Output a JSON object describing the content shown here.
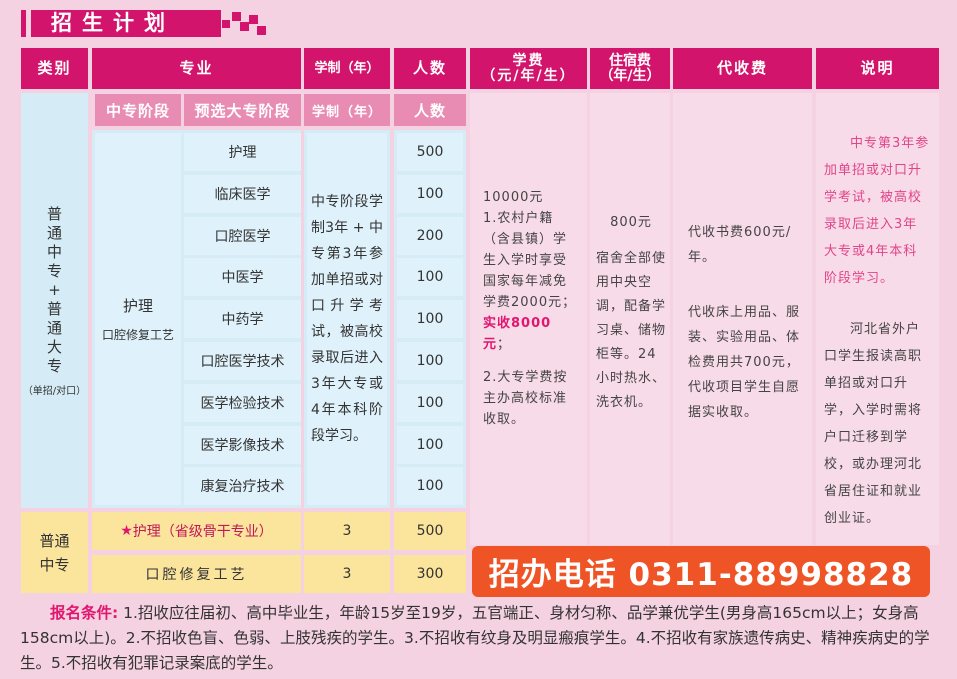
{
  "title": "招生计划",
  "colors": {
    "header": "#d3146c",
    "subheader": "#e98cb3",
    "blue": "#d5ebf6",
    "yellow": "#fbe49b",
    "phone_bg": "#ef5426",
    "highlight": "#e0166f"
  },
  "header": [
    "类别",
    "专业",
    "学制（年）",
    "人数",
    "学费\n（元/年/生）",
    "住宿费\n（年/生）",
    "代收费",
    "说明"
  ],
  "subheader": [
    "中专阶段",
    "预选大专阶段",
    "学制（年）",
    "人数"
  ],
  "category1": {
    "lines": [
      "普",
      "通",
      "中",
      "专",
      "+",
      "普",
      "通",
      "大",
      "专"
    ],
    "note": "（单招/对口）"
  },
  "stage1": {
    "major": "护理",
    "sub": "口腔修复工艺"
  },
  "majors": [
    {
      "name": "护理",
      "count": "500"
    },
    {
      "name": "临床医学",
      "count": "100"
    },
    {
      "name": "口腔医学",
      "count": "200"
    },
    {
      "name": "中医学",
      "count": "100"
    },
    {
      "name": "中药学",
      "count": "100"
    },
    {
      "name": "口腔医学技术",
      "count": "100"
    },
    {
      "name": "医学检验技术",
      "count": "100"
    },
    {
      "name": "医学影像技术",
      "count": "100"
    },
    {
      "name": "康复治疗技术",
      "count": "100"
    }
  ],
  "duration_note": "中专阶段学制3年 + 中专第3年参加单招或对口升学考试，被高校录取后进入3年大专或4年本科阶段学习。",
  "category2": "普通中专",
  "rows2": [
    {
      "star": "★",
      "name": "护理（省级骨干专业）",
      "years": "3",
      "count": "500"
    },
    {
      "name": "口腔修复工艺",
      "years": "3",
      "count": "300"
    }
  ],
  "tuition": {
    "p1": "10000元",
    "p2": "1.农村户籍（含县镇）学生入学时享受国家每年减免学费2000元；",
    "p2_hl": "实收8000元",
    "p2_end": "；",
    "p3": "2.大专学费按主办高校标准收取。"
  },
  "dorm": {
    "price": "800元",
    "desc": "宿舍全部使用中央空调，配备学习桌、储物柜等。24小时热水、洗衣机。"
  },
  "collect": {
    "p1": "代收书费600元/年。",
    "p2": "代收床上用品、服装、实验用品、体检费用共700元，代收项目学生自愿据实收取。"
  },
  "notes": {
    "p1": "中专第3年参加单招或对口升学考试，被高校录取后进入3年大专或4年本科阶段学习。",
    "p2": "河北省外户口学生报读高职单招或对口升学，入学时需将户口迁移到学校，或办理河北省居住证和就业创业证。"
  },
  "phone": "招办电话 0311-88998828",
  "requirements": {
    "label": "报名条件:",
    "text": " 1.招收应往届初、高中毕业生，年龄15岁至19岁，五官端正、身材匀称、品学兼优学生(男身高165cm以上；女身高158cm以上)。2.不招收色盲、色弱、上肢残疾的学生。3.不招收有纹身及明显瘢痕学生。4.不招收有家族遗传病史、精神疾病史的学生。5.不招收有犯罪记录案底的学生。"
  }
}
